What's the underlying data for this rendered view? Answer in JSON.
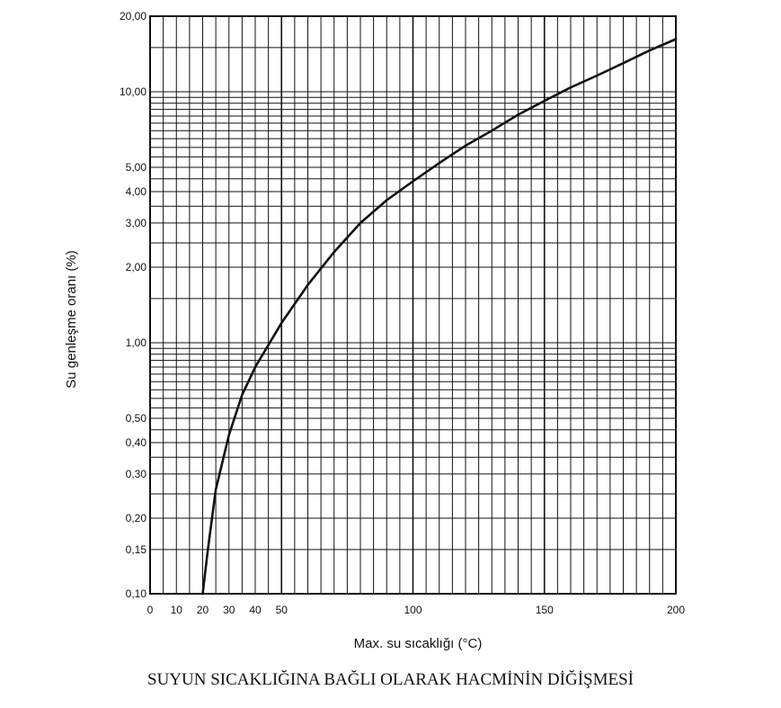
{
  "chart_data": {
    "type": "line",
    "title": "",
    "xlabel": "Max. su sıcaklığı (°C)",
    "ylabel": "Su genleşme oranı (%)",
    "x_ticks": [
      {
        "v": 0,
        "label": "0"
      },
      {
        "v": 10,
        "label": "10"
      },
      {
        "v": 20,
        "label": "20"
      },
      {
        "v": 30,
        "label": "30"
      },
      {
        "v": 40,
        "label": "40"
      },
      {
        "v": 50,
        "label": "50"
      },
      {
        "v": 100,
        "label": "100"
      },
      {
        "v": 150,
        "label": "150"
      },
      {
        "v": 200,
        "label": "200"
      }
    ],
    "y_ticks": [
      {
        "v": 0.1,
        "label": "0,10"
      },
      {
        "v": 0.15,
        "label": "0,15"
      },
      {
        "v": 0.2,
        "label": "0,20"
      },
      {
        "v": 0.3,
        "label": "0,30"
      },
      {
        "v": 0.4,
        "label": "0,40"
      },
      {
        "v": 0.5,
        "label": "0,50"
      },
      {
        "v": 1,
        "label": "1,00"
      },
      {
        "v": 2,
        "label": "2,00"
      },
      {
        "v": 3,
        "label": "3,00"
      },
      {
        "v": 4,
        "label": "4,00"
      },
      {
        "v": 5,
        "label": "5,00"
      },
      {
        "v": 10,
        "label": "10,00"
      },
      {
        "v": 20,
        "label": "20,00"
      }
    ],
    "xlim": [
      0,
      200
    ],
    "ylim": [
      0.1,
      20
    ],
    "y_scale": "log",
    "grid": true,
    "series": [
      {
        "x": [
          20,
          22,
          25,
          30,
          35,
          40,
          50,
          60,
          70,
          80,
          90,
          100,
          110,
          120,
          130,
          140,
          150,
          160,
          170,
          180,
          190,
          200
        ],
        "y": [
          0.1,
          0.15,
          0.26,
          0.43,
          0.62,
          0.8,
          1.2,
          1.7,
          2.3,
          3.0,
          3.7,
          4.4,
          5.2,
          6.1,
          7.0,
          8.1,
          9.2,
          10.4,
          11.6,
          13.0,
          14.6,
          16.2
        ],
        "color": "#111111"
      }
    ]
  },
  "caption": "SUYUN SICAKLIĞINA BAĞLI OLARAK HACMİNİN DİĞİŞMESİ"
}
